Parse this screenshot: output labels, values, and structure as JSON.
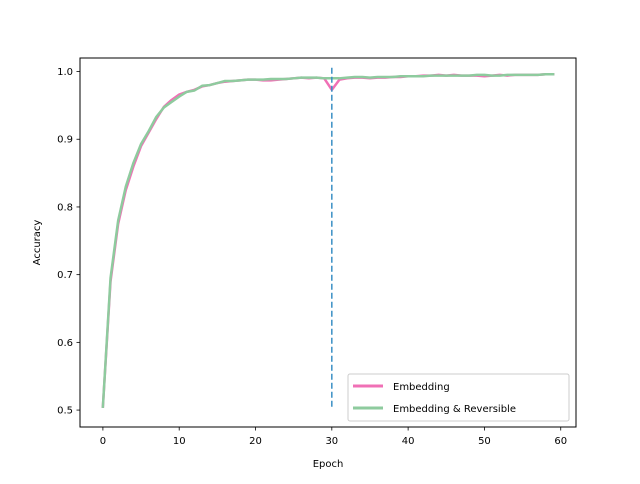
{
  "chart_data": {
    "type": "line",
    "xlabel": "Epoch",
    "ylabel": "Accuracy",
    "xlim": [
      -3,
      62
    ],
    "ylim": [
      0.475,
      1.02
    ],
    "xticks": [
      0,
      10,
      20,
      30,
      40,
      50,
      60
    ],
    "yticks": [
      0.5,
      0.6,
      0.7,
      0.8,
      0.9,
      1.0
    ],
    "xtick_labels": [
      "0",
      "10",
      "20",
      "30",
      "40",
      "50",
      "60"
    ],
    "ytick_labels": [
      "0.5",
      "0.6",
      "0.7",
      "0.8",
      "0.9",
      "1.0"
    ],
    "legend_position": "lower-right",
    "grid": false,
    "vline": {
      "x": 30,
      "ymin": 0.505,
      "ymax": 1.008,
      "style": "dashed",
      "color": "#3a8fc4"
    },
    "series": [
      {
        "name": "Embedding",
        "color": "#f070b6",
        "x": [
          0,
          1,
          2,
          3,
          4,
          5,
          6,
          7,
          8,
          9,
          10,
          11,
          12,
          13,
          14,
          15,
          16,
          17,
          18,
          19,
          20,
          21,
          22,
          23,
          24,
          25,
          26,
          27,
          28,
          29,
          30,
          31,
          32,
          33,
          34,
          35,
          36,
          37,
          38,
          39,
          40,
          41,
          42,
          43,
          44,
          45,
          46,
          47,
          48,
          49,
          50,
          51,
          52,
          53,
          54,
          55,
          56,
          57,
          58,
          59
        ],
        "values": [
          0.505,
          0.69,
          0.775,
          0.825,
          0.86,
          0.89,
          0.91,
          0.93,
          0.948,
          0.958,
          0.966,
          0.97,
          0.973,
          0.978,
          0.98,
          0.983,
          0.985,
          0.986,
          0.987,
          0.988,
          0.988,
          0.987,
          0.987,
          0.988,
          0.989,
          0.99,
          0.991,
          0.99,
          0.991,
          0.99,
          0.973,
          0.988,
          0.99,
          0.991,
          0.991,
          0.99,
          0.991,
          0.991,
          0.992,
          0.992,
          0.993,
          0.993,
          0.994,
          0.994,
          0.995,
          0.994,
          0.995,
          0.994,
          0.994,
          0.994,
          0.993,
          0.994,
          0.995,
          0.994,
          0.995,
          0.995,
          0.995,
          0.995,
          0.996,
          0.996
        ]
      },
      {
        "name": "Embedding & Reversible",
        "color": "#8ecb9e",
        "x": [
          0,
          1,
          2,
          3,
          4,
          5,
          6,
          7,
          8,
          9,
          10,
          11,
          12,
          13,
          14,
          15,
          16,
          17,
          18,
          19,
          20,
          21,
          22,
          23,
          24,
          25,
          26,
          27,
          28,
          29,
          30,
          31,
          32,
          33,
          34,
          35,
          36,
          37,
          38,
          39,
          40,
          41,
          42,
          43,
          44,
          45,
          46,
          47,
          48,
          49,
          50,
          51,
          52,
          53,
          54,
          55,
          56,
          57,
          58,
          59
        ],
        "values": [
          0.505,
          0.695,
          0.78,
          0.83,
          0.865,
          0.893,
          0.912,
          0.933,
          0.947,
          0.955,
          0.963,
          0.97,
          0.972,
          0.979,
          0.98,
          0.983,
          0.986,
          0.986,
          0.987,
          0.988,
          0.988,
          0.988,
          0.989,
          0.989,
          0.989,
          0.99,
          0.991,
          0.991,
          0.991,
          0.99,
          0.99,
          0.99,
          0.991,
          0.992,
          0.992,
          0.991,
          0.992,
          0.992,
          0.992,
          0.993,
          0.993,
          0.993,
          0.993,
          0.994,
          0.994,
          0.994,
          0.994,
          0.994,
          0.994,
          0.995,
          0.995,
          0.994,
          0.994,
          0.995,
          0.995,
          0.995,
          0.995,
          0.995,
          0.996,
          0.996
        ]
      }
    ]
  }
}
